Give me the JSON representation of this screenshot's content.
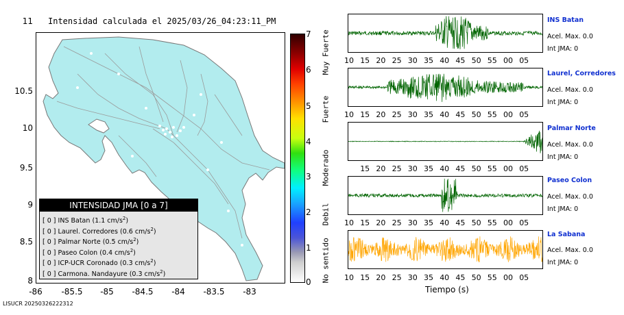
{
  "map": {
    "title": "Intensidad calculada el 2025/03/26_04:23:11_PM",
    "y_ticks": [
      "11",
      "10.5",
      "10",
      "9.5",
      "9",
      "8.5",
      "8"
    ],
    "x_ticks": [
      "-86",
      "-85.5",
      "-85",
      "-84.5",
      "-84",
      "-83.5",
      "-83"
    ],
    "land_color": "#b2ecee",
    "legend": {
      "title": "INTENSIDAD JMA [0 a 7]",
      "entries": [
        {
          "intensity": "[ 0 ]",
          "station": "INS Batan",
          "accel": "(1.1 cm/s",
          "exp": "2",
          "close": ")"
        },
        {
          "intensity": "[ 0 ]",
          "station": "Laurel. Corredores",
          "accel": "(0.6 cm/s",
          "exp": "2",
          "close": ")"
        },
        {
          "intensity": "[ 0 ]",
          "station": "Palmar Norte",
          "accel": "(0.5 cm/s",
          "exp": "2",
          "close": ")"
        },
        {
          "intensity": "[ 0 ]",
          "station": "Paseo Colon",
          "accel": "(0.4 cm/s",
          "exp": "2",
          "close": ")"
        },
        {
          "intensity": "[ 0 ]",
          "station": "ICP-UCR Coronado",
          "accel": "(0.3 cm/s",
          "exp": "2",
          "close": ")"
        },
        {
          "intensity": "[ 0 ]",
          "station": "Carmona. Nandayure",
          "accel": "(0.3 cm/s",
          "exp": "2",
          "close": ")"
        }
      ]
    }
  },
  "scale": {
    "ticks": [
      "7",
      "6",
      "5",
      "4",
      "3",
      "2",
      "1",
      "0"
    ],
    "labels": [
      "Muy Fuerte",
      "Fuerte",
      "Moderado",
      "Debil",
      "No sentido"
    ]
  },
  "waveforms": [
    {
      "name": "INS Batan",
      "accel": "Acel. Max. 0.0",
      "jma": "Int JMA: 0",
      "color": "#006400",
      "ticks": [
        "10",
        "15",
        "20",
        "25",
        "30",
        "35",
        "40",
        "45",
        "50",
        "55",
        "00",
        "05"
      ]
    },
    {
      "name": "Laurel, Corredores",
      "accel": "Acel. Max. 0.0",
      "jma": "Int JMA: 0",
      "color": "#006400",
      "ticks": [
        "10",
        "15",
        "20",
        "25",
        "30",
        "35",
        "40",
        "45",
        "50",
        "55",
        "00",
        "05"
      ]
    },
    {
      "name": "Palmar Norte",
      "accel": "Acel. Max. 0.0",
      "jma": "Int JMA: 0",
      "color": "#006400",
      "ticks": [
        "15",
        "20",
        "25",
        "30",
        "35",
        "40",
        "45",
        "50",
        "55",
        "00",
        "05"
      ]
    },
    {
      "name": "Paseo Colon",
      "accel": "Acel. Max. 0.0",
      "jma": "Int JMA: 0",
      "color": "#006400",
      "ticks": [
        "10",
        "15",
        "20",
        "25",
        "30",
        "35",
        "40",
        "45",
        "50",
        "55",
        "00",
        "05"
      ]
    },
    {
      "name": "La Sabana",
      "accel": "Acel. Max. 0.0",
      "jma": "Int JMA: 0",
      "color": "#ffa500",
      "ticks": [
        "10",
        "15",
        "20",
        "25",
        "30",
        "35",
        "40",
        "45",
        "50",
        "55",
        "00",
        "05"
      ]
    }
  ],
  "time_axis_label": "Tiempo (s)",
  "footer_id": "LISUCR 20250326222312"
}
